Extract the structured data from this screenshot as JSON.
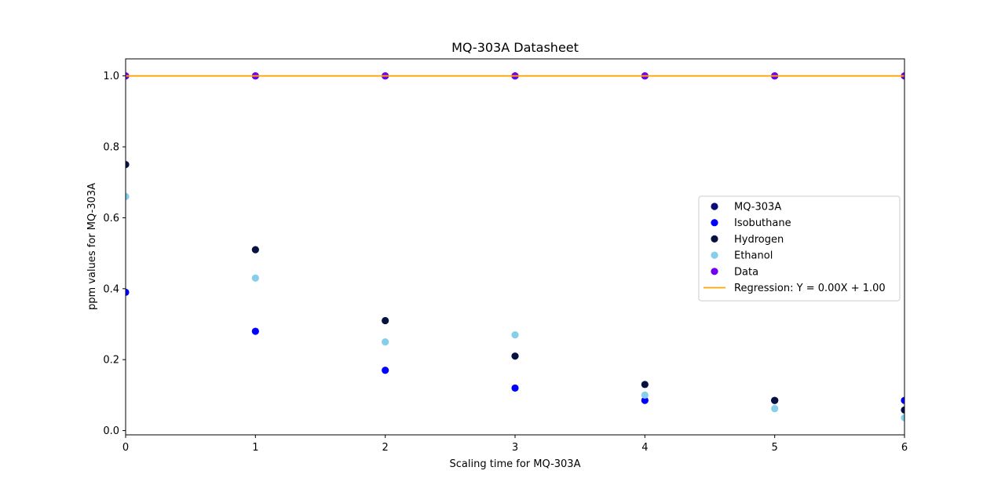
{
  "chart_data": {
    "type": "scatter",
    "title": "MQ-303A Datasheet",
    "xlabel": "Scaling time for MQ-303A",
    "ylabel": "ppm values for MQ-303A",
    "xlim": [
      0,
      6
    ],
    "ylim": [
      -0.012,
      1.048
    ],
    "xticks": [
      0,
      1,
      2,
      3,
      4,
      5,
      6
    ],
    "yticks": [
      0.0,
      0.2,
      0.4,
      0.6,
      0.8,
      1.0
    ],
    "ytick_labels": [
      "0.0",
      "0.2",
      "0.4",
      "0.6",
      "0.8",
      "1.0"
    ],
    "grid": false,
    "legend_position": "center-right",
    "series": [
      {
        "name": "MQ-303A",
        "kind": "scatter",
        "color": "#0b0b7a",
        "x": [
          0,
          1,
          2,
          3,
          4,
          5,
          6
        ],
        "y": [
          1.0,
          1.0,
          1.0,
          1.0,
          1.0,
          1.0,
          1.0
        ]
      },
      {
        "name": "Isobuthane",
        "kind": "scatter",
        "color": "#0000ff",
        "x": [
          0,
          1,
          2,
          3,
          4,
          5,
          6
        ],
        "y": [
          0.39,
          0.28,
          0.17,
          0.12,
          0.085,
          0.085,
          0.085
        ]
      },
      {
        "name": "Hydrogen",
        "kind": "scatter",
        "color": "#06123f",
        "x": [
          0,
          1,
          2,
          3,
          4,
          5,
          6
        ],
        "y": [
          0.75,
          0.51,
          0.31,
          0.21,
          0.13,
          0.085,
          0.058
        ]
      },
      {
        "name": "Ethanol",
        "kind": "scatter",
        "color": "#87ceeb",
        "x": [
          0,
          1,
          2,
          3,
          4,
          5,
          6
        ],
        "y": [
          0.66,
          0.43,
          0.25,
          0.27,
          0.1,
          0.062,
          0.036
        ]
      },
      {
        "name": "Data",
        "kind": "scatter",
        "color": "#7000ee",
        "x": [
          0,
          1,
          2,
          3,
          4,
          5,
          6
        ],
        "y": [
          1.0,
          1.0,
          1.0,
          1.0,
          1.0,
          1.0,
          1.0
        ]
      },
      {
        "name": "Regression: Y = 0.00X + 1.00",
        "kind": "line",
        "color": "#ffa500",
        "x": [
          0,
          6
        ],
        "y": [
          1.0,
          1.0
        ]
      }
    ]
  }
}
